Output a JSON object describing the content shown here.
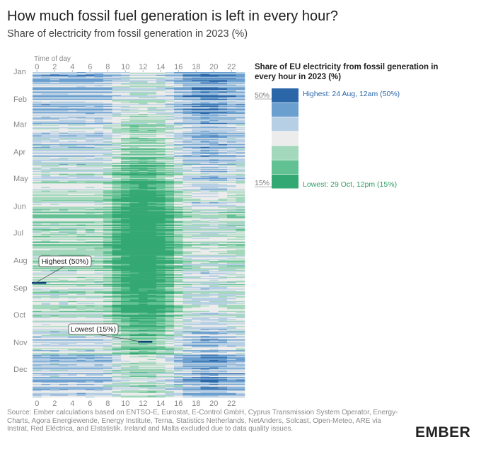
{
  "header": {
    "title": "How much fossil fuel generation is left in every hour?",
    "subtitle": "Share of electricity from fossil generation in 2023 (%)"
  },
  "legend": {
    "title": "Share of EU electricity from fossil generation in every hour in 2023 (%)",
    "top_label": "50%",
    "bottom_label": "15%",
    "highest_text": "Highest: 24 Aug, 12am (50%)",
    "lowest_text": "Lowest: 29 Oct, 12pm (15%)",
    "colors": [
      "#2a66a8",
      "#6a9fcf",
      "#b6cfe4",
      "#ececec",
      "#a3d8bc",
      "#62c192",
      "#34a873"
    ]
  },
  "footer": {
    "source": "Source: Ember calculations based on ENTSO-E, Eurostat, E-Control GmbH, Cyprus Transmission System Operator, Energy-Charts, Agora Energiewende, Energy Institute, Terna, Statistics Netherlands, NetAnders, Solcast, Open-Meteo, ARE via Instrat, Red Eléctrica, and Elstatistik. Ireland and Malta excluded due to data quality issues.",
    "logo": "EMBER"
  },
  "chart_data": {
    "type": "heatmap",
    "title": "How much fossil fuel generation is left in every hour?",
    "subtitle": "Share of electricity from fossil generation in 2023 (%)",
    "xlabel": "Time of day",
    "ylabel": "",
    "x_ticks": [
      0,
      2,
      4,
      6,
      8,
      10,
      12,
      14,
      16,
      18,
      20,
      22
    ],
    "x_range": [
      0,
      23
    ],
    "y_categories": [
      "Jan",
      "Feb",
      "Mar",
      "Apr",
      "May",
      "Jun",
      "Jul",
      "Aug",
      "Sep",
      "Oct",
      "Nov",
      "Dec"
    ],
    "value_range": [
      15,
      50
    ],
    "unit": "%",
    "days": 365,
    "hours": 24,
    "annotations": [
      {
        "label": "Highest (50%)",
        "day": 236,
        "hour": 0,
        "value": 50
      },
      {
        "label": "Lowest (15%)",
        "day": 302,
        "hour": 12,
        "value": 15
      }
    ],
    "month_lengths": [
      31,
      28,
      31,
      30,
      31,
      30,
      31,
      31,
      30,
      31,
      30,
      31
    ]
  }
}
